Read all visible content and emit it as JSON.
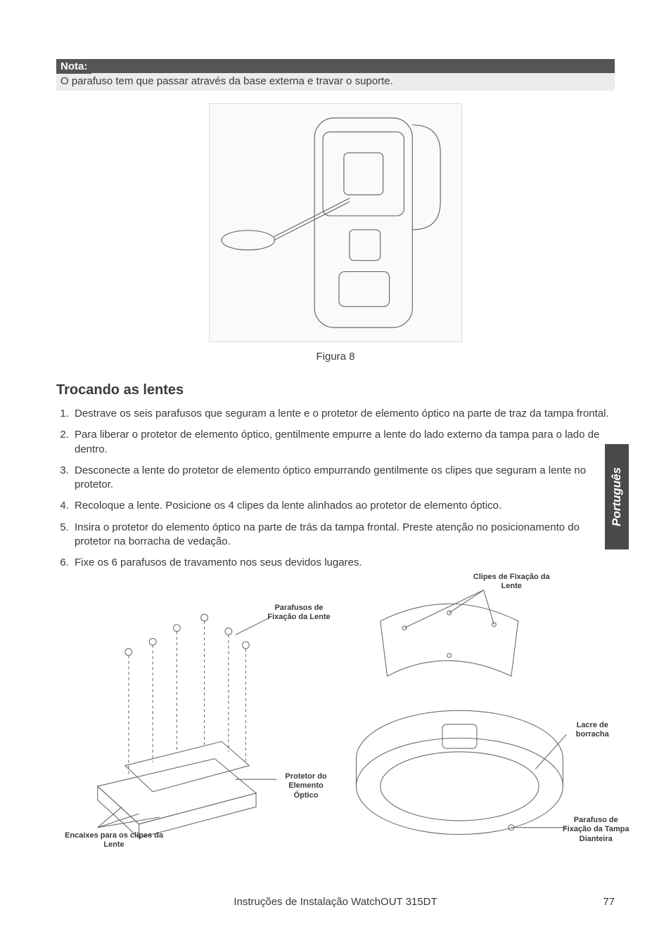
{
  "note": {
    "label": "Nota:",
    "text": "O parafuso tem que passar através da base externa e travar o suporte."
  },
  "figure8": {
    "caption": "Figura 8",
    "placeholder": "[ ilustração: detector + chave de fenda ]"
  },
  "section": {
    "title": "Trocando as lentes",
    "steps": [
      "Destrave os seis parafusos que seguram a lente e o protetor de elemento óptico na parte de traz da tampa frontal.",
      "Para liberar o protetor de elemento óptico, gentilmente empurre a lente do lado externo da tampa para o lado de dentro.",
      "Desconecte a lente do protetor de elemento óptico empurrando gentilmente os clipes que seguram a lente no protetor.",
      "Recoloque a lente. Posicione os 4 clipes da lente alinhados ao protetor de elemento óptico.",
      "Insira o protetor do elemento óptico na parte de trás da tampa frontal. Preste atenção no posicionamento do protetor na borracha de vedação.",
      "Fixe os 6 parafusos de travamento nos seus devidos lugares."
    ]
  },
  "diagramA": {
    "callouts": {
      "screws": "Parafusos de\nFixação da Lente",
      "protector": "Protetor do Elemento\nÓptico",
      "slots": "Encaixes para os clipes da\nLente"
    }
  },
  "diagramB": {
    "callouts": {
      "clips": "Clipes de Fixação da\nLente",
      "seal": "Lacre de\nborracha",
      "frontScrew": "Parafuso de\nFixação da Tampa\nDianteira"
    }
  },
  "sideTab": "Português",
  "footer": {
    "title": "Instruções de Instalação WatchOUT 315DT",
    "page": "77"
  },
  "colors": {
    "text": "#3a3a3a",
    "noteHeaderBg": "#555555",
    "noteBodyBg": "#ececec",
    "sideTabBg": "#4a4a4a",
    "white": "#ffffff",
    "placeholderBorder": "#dcdcdc",
    "placeholderText": "#b0b0b0",
    "lineart": "#6a6a6a"
  }
}
